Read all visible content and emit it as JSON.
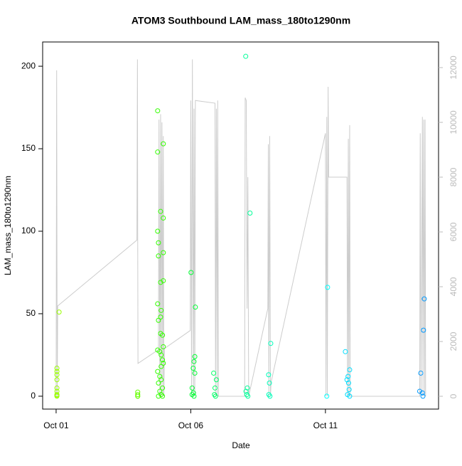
{
  "chart_data": {
    "type": "scatter",
    "title": "ATOM3 Southbound LAM_mass_180to1290nm",
    "x_label": "Date",
    "y_label": "LAM_mass_180to1290nm",
    "xlim": [
      -0.5,
      14.2
    ],
    "ylim": [
      -7.8,
      214.7
    ],
    "y2lim": [
      -468,
      12935
    ],
    "xticks": [
      {
        "value": 0,
        "label": "Oct 01"
      },
      {
        "value": 5,
        "label": "Oct 06"
      },
      {
        "value": 10,
        "label": "Oct 11"
      }
    ],
    "yticks": [
      0,
      50,
      100,
      150,
      200
    ],
    "y2ticks": [
      0,
      2000,
      4000,
      6000,
      8000,
      10000,
      12000
    ],
    "y2_color": "#bbbbbb",
    "series": [
      {
        "color": "#99ff00",
        "x": [
          0.03,
          0.03,
          0.03,
          0.03,
          0.03,
          0.03,
          0.03,
          0.03,
          0.03,
          0.11
        ],
        "values": [
          17,
          15,
          13,
          10,
          5,
          3,
          1,
          0.5,
          0,
          51
        ]
      },
      {
        "color": "#66ff00",
        "x": [
          3.03,
          3.03,
          3.03,
          3.03
        ],
        "values": [
          2.5,
          1,
          0,
          0
        ]
      },
      {
        "color": "#33ff00",
        "x": [
          3.77,
          3.77,
          3.98,
          3.88,
          3.98,
          3.77,
          3.8,
          3.98,
          3.8,
          3.98,
          3.88,
          3.77,
          3.9,
          3.88,
          3.8,
          3.88,
          3.95,
          3.98,
          3.77,
          3.85,
          3.9,
          3.95,
          3.98,
          3.9,
          3.77,
          3.85,
          3.9,
          3.8,
          3.95,
          3.85,
          3.9,
          3.8,
          3.95
        ],
        "values": [
          173,
          148,
          153,
          112,
          108,
          100,
          93,
          87,
          85,
          70,
          69,
          56,
          52,
          48,
          46,
          38,
          37,
          30,
          28,
          27,
          25,
          22,
          20,
          18,
          15,
          12,
          10,
          8,
          5,
          3,
          1,
          0,
          0
        ]
      },
      {
        "color": "#00ff33",
        "x": [
          5.01,
          5.17,
          5.15,
          5.12,
          5.09,
          5.15,
          5.05,
          5.1,
          5.05,
          5.12
        ],
        "values": [
          75,
          54,
          24,
          21,
          17,
          14,
          5,
          2,
          1,
          0
        ]
      },
      {
        "color": "#00ff66",
        "x": [
          5.85,
          5.95,
          5.9,
          5.88,
          5.92
        ],
        "values": [
          14,
          10,
          5,
          1,
          0
        ]
      },
      {
        "color": "#00ff99",
        "x": [
          7.04,
          7.2,
          7.1,
          7.05,
          7.08,
          7.12
        ],
        "values": [
          206,
          111,
          5,
          3,
          1,
          0
        ]
      },
      {
        "color": "#00ffbb",
        "x": [
          7.97,
          7.89,
          7.92,
          7.9,
          7.94
        ],
        "values": [
          32,
          13,
          8,
          1,
          0
        ]
      },
      {
        "color": "#00ffff",
        "x": [
          10.08,
          10.05
        ],
        "values": [
          66,
          0
        ]
      },
      {
        "color": "#00ddff",
        "x": [
          10.74,
          10.9,
          10.84,
          10.8,
          10.86,
          10.88,
          10.82,
          10.9
        ],
        "values": [
          27,
          16,
          12,
          10,
          8,
          4,
          1,
          0
        ]
      },
      {
        "color": "#0099ff",
        "x": [
          13.67,
          13.64,
          13.54,
          13.5,
          13.6,
          13.62
        ],
        "values": [
          59,
          40,
          14,
          3,
          2,
          0
        ]
      },
      {
        "type": "line",
        "axis": "y2",
        "color": "#cccccc",
        "x": [
          0,
          0.02,
          0.04,
          0.06,
          3.0,
          3.02,
          3.03,
          3.04,
          3.8,
          3.82,
          3.85,
          3.88,
          3.9,
          3.93,
          3.96,
          3.98,
          4.0,
          4.02,
          4.98,
          5.0,
          5.03,
          5.06,
          5.1,
          5.12,
          5.15,
          5.17,
          5.9,
          5.92,
          5.95,
          5.98,
          6.0,
          6.03,
          7.0,
          7.02,
          7.06,
          7.09,
          7.12,
          7.15,
          7.86,
          7.88,
          7.9,
          7.93,
          7.96,
          7.98,
          10.0,
          10.02,
          10.05,
          10.07,
          10.1,
          10.12,
          10.8,
          10.82,
          10.85,
          10.87,
          10.9,
          10.92,
          13.5,
          13.52,
          13.55,
          13.6,
          13.62,
          13.65,
          13.68,
          13.7,
          13.72
        ],
        "values": [
          0,
          11900,
          0,
          3300,
          5700,
          12300,
          5700,
          1200,
          1700,
          10100,
          0,
          10300,
          0,
          10000,
          0,
          9500,
          0,
          1740,
          2400,
          10800,
          0,
          12300,
          0,
          10500,
          0,
          10800,
          10700,
          0,
          10500,
          0,
          10800,
          0,
          0,
          10900,
          10800,
          3200,
          8000,
          0,
          3200,
          9200,
          0,
          9500,
          0,
          500,
          9600,
          0,
          10200,
          0,
          11300,
          8000,
          8000,
          0,
          9400,
          0,
          9900,
          0,
          0,
          9600,
          0,
          10200,
          0,
          10100,
          0,
          10100,
          0
        ]
      }
    ]
  }
}
